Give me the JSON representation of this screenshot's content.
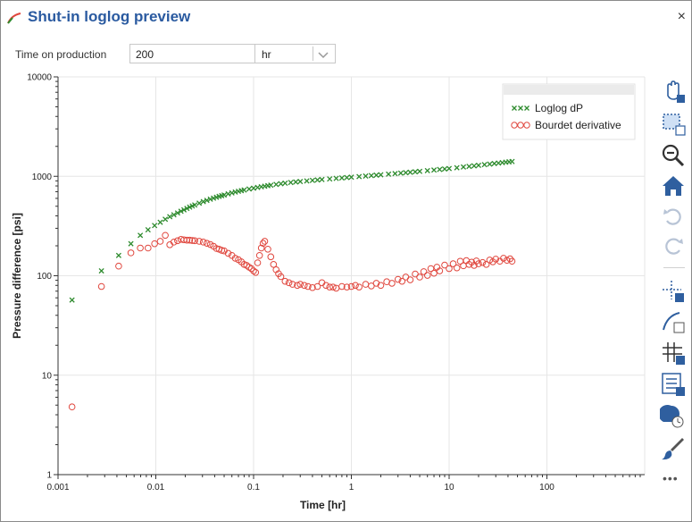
{
  "window": {
    "title": "Shut-in loglog preview",
    "close_label": "×"
  },
  "controls": {
    "time_label": "Time on production",
    "time_value": "200",
    "unit_value": "hr"
  },
  "colors": {
    "title": "#2a5aa0",
    "loglog": "#2e8b2e",
    "bourdet": "#e0473e",
    "toolbar_blue": "#2f5f9f"
  },
  "toolbar": {
    "items": [
      "pan-icon",
      "box-zoom-icon",
      "zoom-out-icon",
      "home-icon",
      "undo-icon",
      "redo-icon",
      "crosshair-icon",
      "curve-fit-icon",
      "grid-icon",
      "legend-icon",
      "color-picker-icon",
      "paint-brush-icon"
    ],
    "more_label": "•••"
  },
  "chart_data": {
    "type": "scatter",
    "xscale": "log",
    "yscale": "log",
    "xlabel": "Time [hr]",
    "ylabel": "Pressure difference [psi]",
    "xlim": [
      0.001,
      1000
    ],
    "ylim": [
      1,
      10000
    ],
    "xticks": [
      "0.001",
      "0.01",
      "0.1",
      "1",
      "10",
      "100"
    ],
    "yticks": [
      "1",
      "10",
      "100",
      "1000",
      "10000"
    ],
    "legend_position": "top-right",
    "grid": true,
    "series": [
      {
        "name": "Loglog dP",
        "marker": "x",
        "points": [
          [
            0.00139,
            57
          ],
          [
            0.00278,
            112
          ],
          [
            0.00417,
            160
          ],
          [
            0.00556,
            210
          ],
          [
            0.00694,
            255
          ],
          [
            0.00833,
            290
          ],
          [
            0.00972,
            320
          ],
          [
            0.0111,
            345
          ],
          [
            0.0125,
            370
          ],
          [
            0.0139,
            392
          ],
          [
            0.0153,
            410
          ],
          [
            0.0167,
            428
          ],
          [
            0.0181,
            445
          ],
          [
            0.0194,
            460
          ],
          [
            0.0208,
            475
          ],
          [
            0.0222,
            490
          ],
          [
            0.0236,
            503
          ],
          [
            0.025,
            515
          ],
          [
            0.0278,
            537
          ],
          [
            0.0306,
            556
          ],
          [
            0.0333,
            573
          ],
          [
            0.0361,
            589
          ],
          [
            0.0389,
            603
          ],
          [
            0.0417,
            616
          ],
          [
            0.0444,
            628
          ],
          [
            0.0472,
            639
          ],
          [
            0.05,
            649
          ],
          [
            0.055,
            666
          ],
          [
            0.06,
            681
          ],
          [
            0.065,
            695
          ],
          [
            0.07,
            707
          ],
          [
            0.075,
            718
          ],
          [
            0.08,
            728
          ],
          [
            0.09,
            746
          ],
          [
            0.1,
            760
          ],
          [
            0.11,
            773
          ],
          [
            0.12,
            785
          ],
          [
            0.13,
            795
          ],
          [
            0.14,
            805
          ],
          [
            0.15,
            814
          ],
          [
            0.17,
            829
          ],
          [
            0.19,
            842
          ],
          [
            0.21,
            853
          ],
          [
            0.24,
            866
          ],
          [
            0.27,
            877
          ],
          [
            0.3,
            886
          ],
          [
            0.35,
            899
          ],
          [
            0.4,
            910
          ],
          [
            0.45,
            919
          ],
          [
            0.5,
            928
          ],
          [
            0.6,
            941
          ],
          [
            0.7,
            953
          ],
          [
            0.8,
            963
          ],
          [
            0.9,
            972
          ],
          [
            1.0,
            980
          ],
          [
            1.2,
            994
          ],
          [
            1.4,
            1006
          ],
          [
            1.6,
            1017
          ],
          [
            1.8,
            1027
          ],
          [
            2.0,
            1036
          ],
          [
            2.4,
            1051
          ],
          [
            2.8,
            1065
          ],
          [
            3.2,
            1077
          ],
          [
            3.6,
            1088
          ],
          [
            4.0,
            1098
          ],
          [
            4.5,
            1110
          ],
          [
            5,
            1121
          ],
          [
            6,
            1140
          ],
          [
            7,
            1157
          ],
          [
            8,
            1172
          ],
          [
            9,
            1186
          ],
          [
            10,
            1198
          ],
          [
            12,
            1220
          ],
          [
            14,
            1240
          ],
          [
            16,
            1258
          ],
          [
            18,
            1274
          ],
          [
            20,
            1289
          ],
          [
            23,
            1309
          ],
          [
            26,
            1327
          ],
          [
            29,
            1344
          ],
          [
            32,
            1359
          ],
          [
            35,
            1373
          ],
          [
            38,
            1386
          ],
          [
            41,
            1398
          ],
          [
            44,
            1409
          ]
        ]
      },
      {
        "name": "Bourdet derivative",
        "marker": "o",
        "points": [
          [
            0.00139,
            4.8
          ],
          [
            0.00278,
            78
          ],
          [
            0.00417,
            125
          ],
          [
            0.00556,
            170
          ],
          [
            0.00694,
            190
          ],
          [
            0.00833,
            190
          ],
          [
            0.00972,
            210
          ],
          [
            0.0111,
            222
          ],
          [
            0.0125,
            255
          ],
          [
            0.0139,
            205
          ],
          [
            0.0153,
            218
          ],
          [
            0.0167,
            225
          ],
          [
            0.0181,
            232
          ],
          [
            0.0194,
            230
          ],
          [
            0.0208,
            228
          ],
          [
            0.0222,
            228
          ],
          [
            0.0236,
            226
          ],
          [
            0.025,
            225
          ],
          [
            0.0278,
            222
          ],
          [
            0.0306,
            218
          ],
          [
            0.0333,
            212
          ],
          [
            0.0361,
            206
          ],
          [
            0.0389,
            198
          ],
          [
            0.0417,
            188
          ],
          [
            0.0444,
            185
          ],
          [
            0.0472,
            180
          ],
          [
            0.05,
            178
          ],
          [
            0.055,
            168
          ],
          [
            0.06,
            160
          ],
          [
            0.065,
            150
          ],
          [
            0.07,
            145
          ],
          [
            0.075,
            138
          ],
          [
            0.08,
            130
          ],
          [
            0.085,
            127
          ],
          [
            0.09,
            122
          ],
          [
            0.095,
            118
          ],
          [
            0.1,
            112
          ],
          [
            0.105,
            108
          ],
          [
            0.11,
            135
          ],
          [
            0.115,
            160
          ],
          [
            0.12,
            190
          ],
          [
            0.125,
            212
          ],
          [
            0.13,
            222
          ],
          [
            0.14,
            185
          ],
          [
            0.15,
            155
          ],
          [
            0.16,
            130
          ],
          [
            0.17,
            115
          ],
          [
            0.18,
            105
          ],
          [
            0.19,
            98
          ],
          [
            0.21,
            88
          ],
          [
            0.23,
            85
          ],
          [
            0.25,
            82
          ],
          [
            0.28,
            80
          ],
          [
            0.3,
            82
          ],
          [
            0.33,
            80
          ],
          [
            0.36,
            78
          ],
          [
            0.4,
            76
          ],
          [
            0.45,
            78
          ],
          [
            0.5,
            85
          ],
          [
            0.55,
            80
          ],
          [
            0.6,
            77
          ],
          [
            0.65,
            77
          ],
          [
            0.7,
            75
          ],
          [
            0.8,
            78
          ],
          [
            0.9,
            77
          ],
          [
            1.0,
            78
          ],
          [
            1.1,
            80
          ],
          [
            1.2,
            77
          ],
          [
            1.4,
            82
          ],
          [
            1.6,
            79
          ],
          [
            1.8,
            84
          ],
          [
            2.0,
            80
          ],
          [
            2.3,
            87
          ],
          [
            2.6,
            84
          ],
          [
            3.0,
            92
          ],
          [
            3.3,
            88
          ],
          [
            3.6,
            97
          ],
          [
            4.0,
            91
          ],
          [
            4.5,
            104
          ],
          [
            5.0,
            97
          ],
          [
            5.5,
            110
          ],
          [
            6.0,
            101
          ],
          [
            6.5,
            118
          ],
          [
            7.0,
            106
          ],
          [
            7.5,
            122
          ],
          [
            8,
            112
          ],
          [
            9,
            128
          ],
          [
            10,
            118
          ],
          [
            11,
            132
          ],
          [
            12,
            120
          ],
          [
            13,
            140
          ],
          [
            14,
            126
          ],
          [
            15,
            142
          ],
          [
            16,
            130
          ],
          [
            17,
            137
          ],
          [
            18,
            127
          ],
          [
            19,
            141
          ],
          [
            20,
            132
          ],
          [
            22,
            136
          ],
          [
            24,
            130
          ],
          [
            26,
            144
          ],
          [
            28,
            138
          ],
          [
            30,
            147
          ],
          [
            33,
            140
          ],
          [
            36,
            150
          ],
          [
            39,
            143
          ],
          [
            42,
            148
          ],
          [
            44,
            140
          ]
        ]
      }
    ]
  }
}
